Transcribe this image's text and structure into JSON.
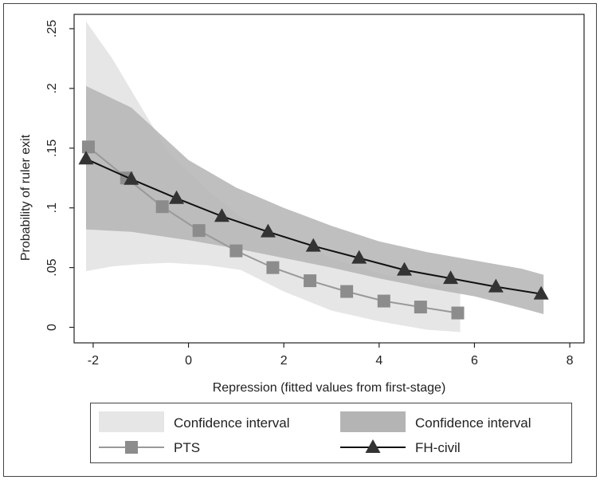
{
  "chart_data": {
    "type": "line",
    "title": "",
    "xlabel": "Repression (fitted values from first-stage)",
    "ylabel": "Probability of ruler exit",
    "xlim": [
      -2.4,
      8.3
    ],
    "ylim": [
      -0.013,
      0.262
    ],
    "xticks": [
      -2,
      0,
      2,
      4,
      6,
      8
    ],
    "xtick_labels": [
      "-2",
      "0",
      "2",
      "4",
      "6",
      "8"
    ],
    "yticks": [
      0,
      0.05,
      0.1,
      0.15,
      0.2,
      0.25
    ],
    "ytick_labels": [
      "0",
      ".05",
      ".1",
      ".15",
      ".2",
      ".25"
    ],
    "grid": false,
    "legend_position": "bottom",
    "colors": {
      "pts_line": "#999999",
      "pts_marker": "#8c8c8c",
      "pts_ci": "#e6e6e6",
      "fh_line": "#111111",
      "fh_marker": "#333333",
      "fh_ci": "#b4b4b4",
      "axis": "#222222"
    },
    "series": [
      {
        "name": "PTS",
        "marker": "square",
        "x": [
          -2.1,
          -1.3,
          -0.55,
          0.22,
          1.0,
          1.77,
          2.55,
          3.32,
          4.1,
          4.87,
          5.65
        ],
        "y": [
          0.151,
          0.125,
          0.101,
          0.081,
          0.064,
          0.05,
          0.039,
          0.03,
          0.022,
          0.017,
          0.012
        ]
      },
      {
        "name": "FH-civil",
        "marker": "triangle",
        "x": [
          -2.15,
          -1.2,
          -0.25,
          0.7,
          1.67,
          2.62,
          3.58,
          4.53,
          5.5,
          6.45,
          7.4
        ],
        "y": [
          0.141,
          0.124,
          0.108,
          0.093,
          0.08,
          0.068,
          0.058,
          0.048,
          0.041,
          0.034,
          0.028
        ]
      }
    ],
    "confidence_bands": [
      {
        "name": "Confidence interval",
        "for_series": "PTS",
        "x": [
          -2.15,
          -1.6,
          -1.0,
          -0.4,
          0.4,
          1.1,
          2.0,
          3.0,
          4.0,
          5.0,
          5.7
        ],
        "upper": [
          0.256,
          0.225,
          0.185,
          0.145,
          0.115,
          0.092,
          0.074,
          0.058,
          0.045,
          0.037,
          0.033
        ],
        "lower": [
          0.047,
          0.051,
          0.053,
          0.054,
          0.052,
          0.048,
          0.03,
          0.014,
          0.005,
          -0.002,
          -0.004
        ]
      },
      {
        "name": "Confidence interval",
        "for_series": "FH-civil",
        "x": [
          -2.15,
          -1.2,
          0,
          1,
          2,
          3,
          4,
          5,
          6,
          7,
          7.45
        ],
        "upper": [
          0.202,
          0.184,
          0.14,
          0.117,
          0.1,
          0.085,
          0.072,
          0.063,
          0.056,
          0.049,
          0.044
        ],
        "lower": [
          0.082,
          0.08,
          0.073,
          0.066,
          0.058,
          0.05,
          0.041,
          0.033,
          0.026,
          0.016,
          0.011
        ]
      }
    ]
  },
  "legend": {
    "entries": [
      {
        "label": "Confidence interval",
        "kind": "band",
        "series": "PTS"
      },
      {
        "label": "Confidence interval",
        "kind": "band",
        "series": "FH-civil"
      },
      {
        "label": "PTS",
        "kind": "line",
        "series": "PTS"
      },
      {
        "label": "FH-civil",
        "kind": "line",
        "series": "FH-civil"
      }
    ]
  }
}
